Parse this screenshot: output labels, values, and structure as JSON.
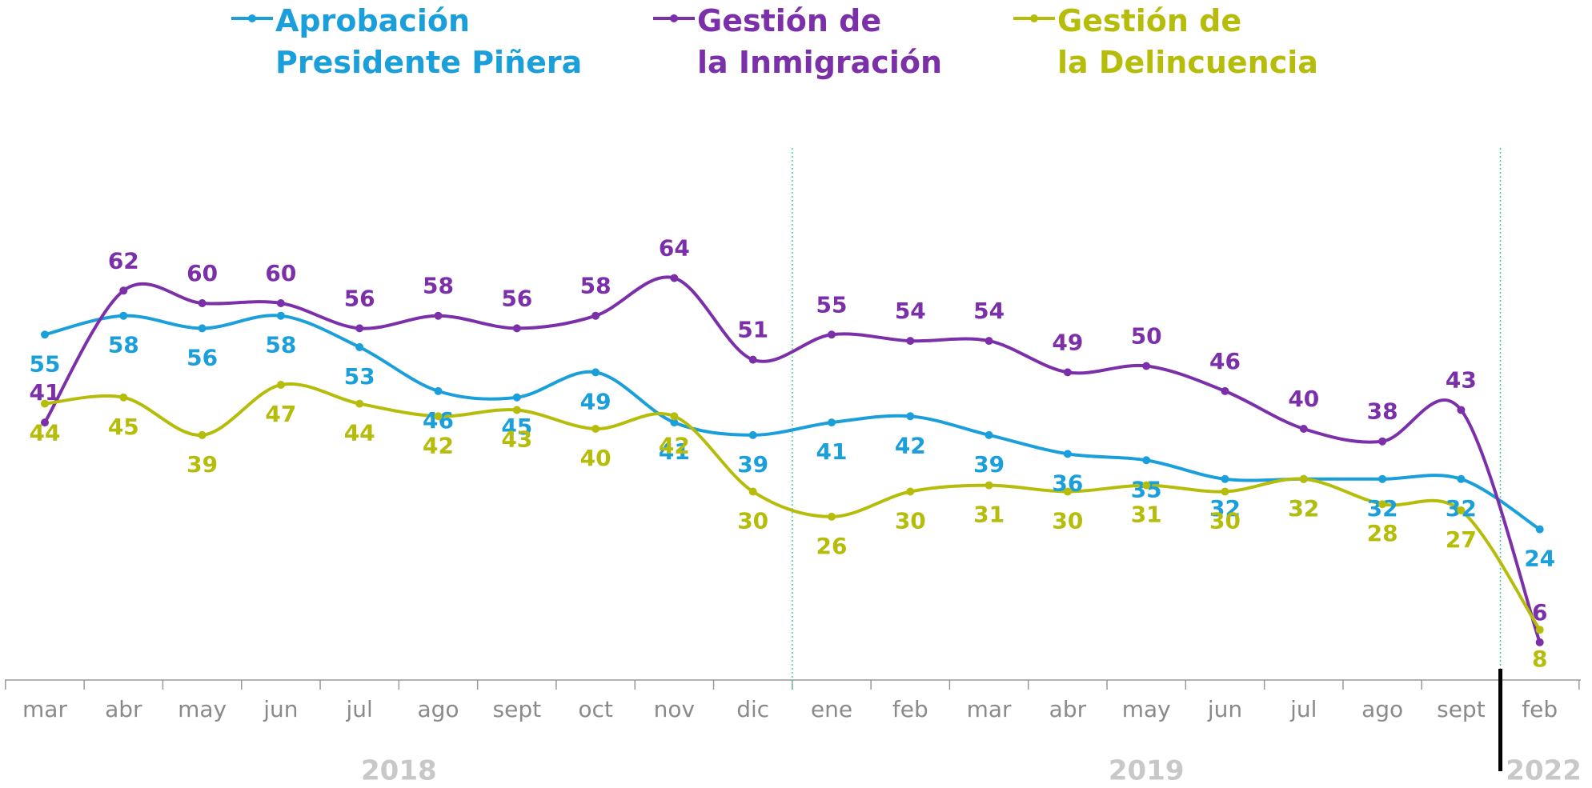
{
  "chart_data": {
    "type": "line",
    "categories": [
      "mar",
      "abr",
      "may",
      "jun",
      "jul",
      "ago",
      "sept",
      "oct",
      "nov",
      "dic",
      "ene",
      "feb",
      "mar",
      "abr",
      "may",
      "jun",
      "jul",
      "ago",
      "sept",
      "feb"
    ],
    "annotations": [
      "2018",
      "2019",
      "2022"
    ],
    "series": [
      {
        "name": "Aprobación\nPresidente Piñera",
        "color": "#1a9fdb",
        "values": [
          55,
          58,
          56,
          58,
          53,
          46,
          45,
          49,
          41,
          39,
          41,
          42,
          39,
          36,
          35,
          32,
          32,
          32,
          32,
          24
        ]
      },
      {
        "name": "Gestión de\nla Inmigración",
        "color": "#7b2fa8",
        "values": [
          41,
          62,
          60,
          60,
          56,
          58,
          56,
          58,
          64,
          51,
          55,
          54,
          54,
          49,
          50,
          46,
          40,
          38,
          43,
          6
        ]
      },
      {
        "name": "Gestión de\nla Delincuencia",
        "color": "#b5bd0a",
        "values": [
          44,
          45,
          39,
          47,
          44,
          42,
          43,
          40,
          42,
          30,
          26,
          30,
          31,
          30,
          31,
          30,
          32,
          28,
          27,
          8
        ]
      }
    ]
  }
}
